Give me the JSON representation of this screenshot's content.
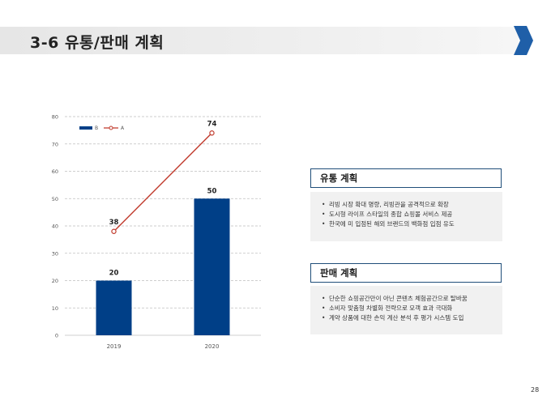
{
  "header": {
    "title": "3-6 유통/판매 계획"
  },
  "chart_data": {
    "type": "bar",
    "categories": [
      "2019",
      "2020"
    ],
    "series": [
      {
        "name": "B",
        "type": "bar",
        "values": [
          20,
          50
        ],
        "color": "#003f87"
      },
      {
        "name": "A",
        "type": "line",
        "values": [
          38,
          74
        ],
        "color": "#c0392b"
      }
    ],
    "ylim": [
      0,
      80
    ],
    "yticks": [
      0,
      10,
      20,
      30,
      40,
      50,
      60,
      70,
      80
    ],
    "grid": true,
    "legend": "top-left"
  },
  "distribution": {
    "title": "유통 계획",
    "items": [
      "리빙 시장 확대 명량, 리빙관을 공격적으로 확장",
      "도시형 라이프 스타일의 종합 쇼핑몰 서비스 제공",
      "한국에 미 입점된 해외 브랜드의 백화점 입점 유도"
    ]
  },
  "sales": {
    "title": "판매 계획",
    "items": [
      "단순한 쇼핑공간만이 아닌 콘텐츠 체험공간으로 탈바꿈",
      "소비자 맞춤형 차별화 전략으로 모객 효과 극대화",
      "계약 상품에 대한 손익 계산 분석 후 평가 시스템 도입"
    ]
  },
  "footer": {
    "page_number": "28"
  },
  "colors": {
    "brand": "#1f4e79",
    "accent": "#1f5fa8"
  }
}
